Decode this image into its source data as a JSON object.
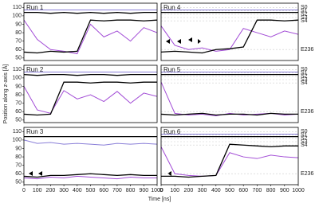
{
  "xlabel": "Time [ns]",
  "ylabel": "Position along z-axis [Å]",
  "chart_data": [
    {
      "type": "line",
      "title": "Run 1",
      "x": [
        0,
        100,
        200,
        300,
        400,
        500,
        600,
        700,
        800,
        900,
        1000
      ],
      "xlim": [
        0,
        1000
      ],
      "ylim": [
        47,
        115
      ],
      "yticks": [
        50,
        60,
        70,
        80,
        90,
        100,
        110
      ],
      "series": [
        {
          "color": "#8a7fd8",
          "values": [
            107,
            107,
            107,
            107,
            107,
            107,
            107,
            107,
            107,
            107,
            107
          ]
        },
        {
          "color": "#a24cd6",
          "values": [
            95,
            72,
            60,
            58,
            55,
            90,
            75,
            82,
            70,
            86,
            80
          ]
        },
        {
          "color": "#000000",
          "values": [
            104,
            104,
            103,
            104,
            103,
            104,
            103,
            104,
            103,
            104,
            104
          ]
        },
        {
          "color": "#000000",
          "values": [
            57,
            56,
            58,
            57,
            58,
            95,
            94,
            95,
            95,
            94,
            95
          ]
        }
      ]
    },
    {
      "type": "line",
      "title": "Run 4",
      "x": [
        0,
        100,
        200,
        300,
        400,
        500,
        600,
        700,
        800,
        900,
        1000
      ],
      "xlim": [
        0,
        1000
      ],
      "ylim": [
        47,
        115
      ],
      "annotations": [
        {
          "text": "S0",
          "y": 110
        },
        {
          "text": "S1",
          "y": 106
        },
        {
          "text": "S2",
          "y": 102
        },
        {
          "text": "S3",
          "y": 98
        },
        {
          "text": "S4",
          "y": 94
        },
        {
          "text": "E236",
          "y": 60
        }
      ],
      "series": [
        {
          "color": "#8a7fd8",
          "values": [
            107,
            107,
            107,
            107,
            107,
            107,
            107,
            107,
            107,
            107,
            107
          ]
        },
        {
          "color": "#a24cd6",
          "values": [
            88,
            65,
            60,
            62,
            58,
            60,
            85,
            80,
            75,
            82,
            78
          ]
        },
        {
          "color": "#000000",
          "values": [
            104,
            104,
            104,
            104,
            104,
            104,
            104,
            104,
            104,
            104,
            104
          ]
        },
        {
          "color": "#000000",
          "values": [
            57,
            58,
            57,
            56,
            60,
            61,
            63,
            95,
            95,
            94,
            95
          ]
        }
      ]
    },
    {
      "type": "line",
      "title": "Run 2",
      "x": [
        0,
        100,
        200,
        300,
        400,
        500,
        600,
        700,
        800,
        900,
        1000
      ],
      "xlim": [
        0,
        1000
      ],
      "ylim": [
        47,
        115
      ],
      "yticks": [
        50,
        60,
        70,
        80,
        90,
        100,
        110
      ],
      "series": [
        {
          "color": "#8a7fd8",
          "values": [
            107,
            107,
            107,
            107,
            107,
            107,
            107,
            107,
            107,
            107,
            107
          ]
        },
        {
          "color": "#a24cd6",
          "values": [
            90,
            62,
            58,
            85,
            75,
            80,
            72,
            84,
            70,
            82,
            78
          ]
        },
        {
          "color": "#000000",
          "values": [
            104,
            103,
            104,
            104,
            103,
            104,
            104,
            103,
            104,
            104,
            104
          ]
        },
        {
          "color": "#000000",
          "values": [
            57,
            56,
            57,
            95,
            95,
            94,
            95,
            95,
            94,
            95,
            95
          ]
        }
      ]
    },
    {
      "type": "line",
      "title": "Run 5",
      "x": [
        0,
        100,
        200,
        300,
        400,
        500,
        600,
        700,
        800,
        900,
        1000
      ],
      "xlim": [
        0,
        1000
      ],
      "ylim": [
        47,
        115
      ],
      "annotations": [
        {
          "text": "S0",
          "y": 110
        },
        {
          "text": "S1",
          "y": 106
        },
        {
          "text": "S2",
          "y": 102
        },
        {
          "text": "S3",
          "y": 98
        },
        {
          "text": "S4",
          "y": 94
        },
        {
          "text": "E236",
          "y": 60
        }
      ],
      "series": [
        {
          "color": "#8a7fd8",
          "values": [
            107,
            107,
            107,
            107,
            107,
            107,
            107,
            107,
            107,
            107,
            107
          ]
        },
        {
          "color": "#a24cd6",
          "values": [
            95,
            58,
            56,
            57,
            55,
            58,
            56,
            57,
            58,
            56,
            57
          ]
        },
        {
          "color": "#000000",
          "values": [
            104,
            104,
            104,
            104,
            104,
            104,
            104,
            104,
            104,
            104,
            104
          ]
        },
        {
          "color": "#000000",
          "values": [
            57,
            56,
            57,
            58,
            56,
            57,
            57,
            56,
            58,
            57,
            57
          ]
        }
      ]
    },
    {
      "type": "line",
      "title": "Run 3",
      "x": [
        0,
        100,
        200,
        300,
        400,
        500,
        600,
        700,
        800,
        900,
        1000
      ],
      "xlim": [
        0,
        1000
      ],
      "ylim": [
        47,
        115
      ],
      "xticks": [
        0,
        100,
        200,
        300,
        400,
        500,
        600,
        700,
        800,
        900,
        1000
      ],
      "yticks": [
        50,
        60,
        70,
        80,
        90,
        100,
        110
      ],
      "series": [
        {
          "color": "#8a7fd8",
          "values": [
            100,
            96,
            97,
            95,
            96,
            95,
            94,
            96,
            95,
            96,
            95
          ]
        },
        {
          "color": "#a24cd6",
          "values": [
            55,
            54,
            56,
            55,
            57,
            56,
            55,
            54,
            56,
            55,
            55
          ]
        },
        {
          "color": "#000000",
          "values": [
            104,
            104,
            104,
            104,
            104,
            104,
            104,
            104,
            104,
            104,
            104
          ]
        },
        {
          "color": "#000000",
          "values": [
            57,
            56,
            58,
            58,
            59,
            60,
            59,
            58,
            59,
            58,
            58
          ]
        }
      ]
    },
    {
      "type": "line",
      "title": "Run 6",
      "x": [
        0,
        100,
        200,
        300,
        400,
        500,
        600,
        700,
        800,
        900,
        1000
      ],
      "xlim": [
        0,
        1000
      ],
      "ylim": [
        47,
        115
      ],
      "xticks": [
        0,
        100,
        200,
        300,
        400,
        500,
        600,
        700,
        800,
        900,
        1000
      ],
      "annotations": [
        {
          "text": "S0",
          "y": 110
        },
        {
          "text": "S1",
          "y": 106
        },
        {
          "text": "S2",
          "y": 102
        },
        {
          "text": "S3",
          "y": 98
        },
        {
          "text": "S4",
          "y": 94
        },
        {
          "text": "E236",
          "y": 60
        }
      ],
      "series": [
        {
          "color": "#8a7fd8",
          "values": [
            107,
            107,
            107,
            107,
            107,
            107,
            107,
            107,
            107,
            107,
            107
          ]
        },
        {
          "color": "#a24cd6",
          "values": [
            92,
            60,
            58,
            57,
            58,
            85,
            80,
            78,
            82,
            80,
            79
          ]
        },
        {
          "color": "#000000",
          "values": [
            104,
            104,
            104,
            104,
            104,
            104,
            104,
            104,
            104,
            104,
            104
          ]
        },
        {
          "color": "#000000",
          "values": [
            57,
            57,
            56,
            57,
            58,
            95,
            94,
            93,
            92,
            93,
            93
          ]
        }
      ]
    }
  ]
}
